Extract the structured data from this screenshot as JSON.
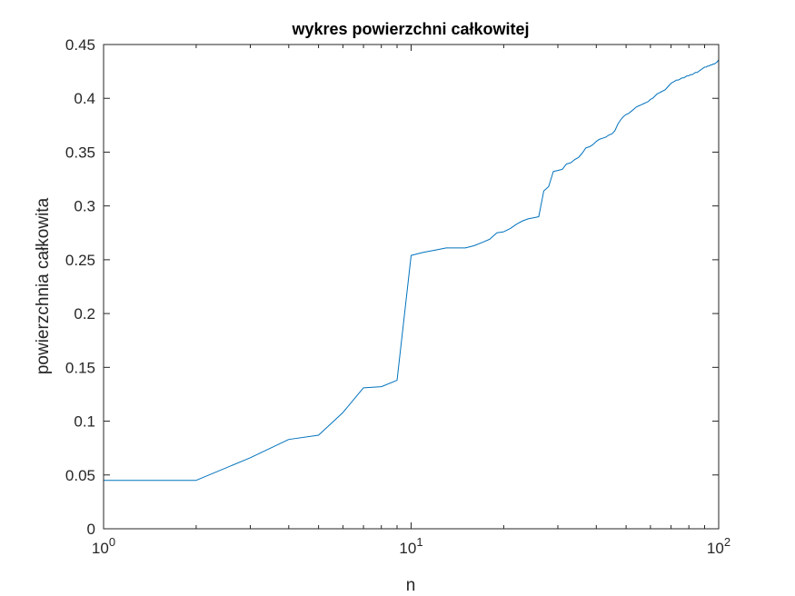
{
  "chart_data": {
    "type": "line",
    "title": "wykres powierzchni całkowitej",
    "xlabel": "n",
    "ylabel": "powierzchnia całkowita",
    "xscale": "log",
    "xlim": [
      1,
      100
    ],
    "ylim": [
      0,
      0.45
    ],
    "grid": false,
    "box": true,
    "line_color": "#0072BD",
    "axis_color": "#262626",
    "x_ticks": [
      {
        "value": 1,
        "base": "10",
        "exp": "0"
      },
      {
        "value": 10,
        "base": "10",
        "exp": "1"
      },
      {
        "value": 100,
        "base": "10",
        "exp": "2"
      }
    ],
    "y_ticks": [
      {
        "value": 0,
        "label": "0"
      },
      {
        "value": 0.05,
        "label": "0.05"
      },
      {
        "value": 0.1,
        "label": "0.1"
      },
      {
        "value": 0.15,
        "label": "0.15"
      },
      {
        "value": 0.2,
        "label": "0.2"
      },
      {
        "value": 0.25,
        "label": "0.25"
      },
      {
        "value": 0.3,
        "label": "0.3"
      },
      {
        "value": 0.35,
        "label": "0.35"
      },
      {
        "value": 0.4,
        "label": "0.4"
      },
      {
        "value": 0.45,
        "label": "0.45"
      }
    ],
    "series": [
      {
        "x": [
          1,
          2,
          3,
          4,
          5,
          6,
          7,
          8,
          9,
          10,
          11,
          12,
          13,
          14,
          15,
          16,
          17,
          18,
          19,
          20,
          21,
          22,
          23,
          24,
          25,
          26,
          27,
          28,
          29,
          30,
          31,
          32,
          33,
          34,
          35,
          36,
          37,
          38,
          39,
          40,
          41,
          42,
          43,
          44,
          45,
          46,
          47,
          48,
          49,
          50,
          51,
          52,
          53,
          54,
          55,
          56,
          57,
          58,
          59,
          60,
          61,
          62,
          63,
          64,
          65,
          66,
          67,
          68,
          69,
          70,
          71,
          72,
          73,
          74,
          75,
          76,
          77,
          78,
          79,
          80,
          81,
          82,
          83,
          84,
          85,
          86,
          87,
          88,
          89,
          90,
          91,
          92,
          93,
          94,
          95,
          96,
          97,
          98,
          99,
          100
        ],
        "y": [
          0.045,
          0.045,
          0.066,
          0.083,
          0.087,
          0.108,
          0.131,
          0.132,
          0.138,
          0.254,
          0.257,
          0.259,
          0.261,
          0.261,
          0.261,
          0.263,
          0.266,
          0.269,
          0.275,
          0.276,
          0.279,
          0.283,
          0.286,
          0.288,
          0.289,
          0.29,
          0.314,
          0.318,
          0.332,
          0.333,
          0.334,
          0.339,
          0.34,
          0.343,
          0.345,
          0.349,
          0.354,
          0.355,
          0.357,
          0.36,
          0.362,
          0.363,
          0.364,
          0.366,
          0.367,
          0.37,
          0.376,
          0.38,
          0.383,
          0.385,
          0.386,
          0.388,
          0.39,
          0.392,
          0.393,
          0.394,
          0.395,
          0.396,
          0.397,
          0.399,
          0.4,
          0.402,
          0.404,
          0.405,
          0.406,
          0.407,
          0.408,
          0.41,
          0.412,
          0.414,
          0.415,
          0.416,
          0.417,
          0.417,
          0.418,
          0.419,
          0.419,
          0.42,
          0.421,
          0.421,
          0.422,
          0.422,
          0.423,
          0.424,
          0.424,
          0.425,
          0.426,
          0.427,
          0.428,
          0.429,
          0.429,
          0.43,
          0.43,
          0.431,
          0.431,
          0.432,
          0.432,
          0.433,
          0.434,
          0.436
        ]
      }
    ]
  }
}
